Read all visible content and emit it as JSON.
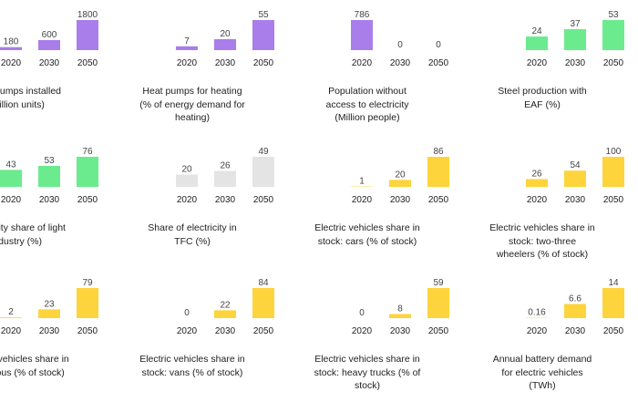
{
  "colors": {
    "purple": "#a97eea",
    "green": "#6ceb8e",
    "grey": "#e4e4e4",
    "yellow": "#fdd43b"
  },
  "chart_data": [
    {
      "type": "bar",
      "title_lines": [
        "Heat pumps installed",
        "(Million units)"
      ],
      "categories": [
        "2020",
        "2030",
        "2050"
      ],
      "values": [
        180,
        600,
        1800
      ],
      "labels": [
        "180",
        "600",
        "1800"
      ],
      "color": "purple"
    },
    {
      "type": "bar",
      "title_lines": [
        "Heat pumps for heating",
        "(% of energy demand for",
        "heating)"
      ],
      "categories": [
        "2020",
        "2030",
        "2050"
      ],
      "values": [
        7,
        20,
        55
      ],
      "labels": [
        "7",
        "20",
        "55"
      ],
      "color": "purple"
    },
    {
      "type": "bar",
      "title_lines": [
        "Population without",
        "access to electricity",
        "(Million people)"
      ],
      "categories": [
        "2020",
        "2030",
        "2050"
      ],
      "values": [
        786,
        0,
        0
      ],
      "labels": [
        "786",
        "0",
        "0"
      ],
      "color": "purple"
    },
    {
      "type": "bar",
      "title_lines": [
        "Steel production with",
        "EAF (%)"
      ],
      "categories": [
        "2020",
        "2030",
        "2050"
      ],
      "values": [
        24,
        37,
        53
      ],
      "labels": [
        "24",
        "37",
        "53"
      ],
      "color": "green"
    },
    {
      "type": "bar",
      "title_lines": [
        "Electricity share of light",
        "industry (%)"
      ],
      "categories": [
        "2020",
        "2030",
        "2050"
      ],
      "values": [
        43,
        53,
        76
      ],
      "labels": [
        "43",
        "53",
        "76"
      ],
      "color": "green"
    },
    {
      "type": "bar",
      "title_lines": [
        "Share of electricity in",
        "TFC (%)"
      ],
      "categories": [
        "2020",
        "2030",
        "2050"
      ],
      "values": [
        20,
        26,
        49
      ],
      "labels": [
        "20",
        "26",
        "49"
      ],
      "color": "grey"
    },
    {
      "type": "bar",
      "title_lines": [
        "Electric vehicles share in",
        "stock: cars (% of stock)"
      ],
      "categories": [
        "2020",
        "2030",
        "2050"
      ],
      "values": [
        1,
        20,
        86
      ],
      "labels": [
        "1",
        "20",
        "86"
      ],
      "color": "yellow"
    },
    {
      "type": "bar",
      "title_lines": [
        "Electric vehicles share in",
        "stock: two-three",
        "wheelers (% of stock)"
      ],
      "categories": [
        "2020",
        "2030",
        "2050"
      ],
      "values": [
        26,
        54,
        100
      ],
      "labels": [
        "26",
        "54",
        "100"
      ],
      "color": "yellow"
    },
    {
      "type": "bar",
      "title_lines": [
        "Electric vehicles share in",
        "stock: bus (% of stock)"
      ],
      "categories": [
        "2020",
        "2030",
        "2050"
      ],
      "values": [
        2,
        23,
        79
      ],
      "labels": [
        "2",
        "23",
        "79"
      ],
      "color": "yellow"
    },
    {
      "type": "bar",
      "title_lines": [
        "Electric vehicles share in",
        "stock: vans (% of stock)"
      ],
      "categories": [
        "2020",
        "2030",
        "2050"
      ],
      "values": [
        0,
        22,
        84
      ],
      "labels": [
        "0",
        "22",
        "84"
      ],
      "color": "yellow"
    },
    {
      "type": "bar",
      "title_lines": [
        "Electric vehicles share in",
        "stock: heavy trucks (% of",
        "stock)"
      ],
      "categories": [
        "2020",
        "2030",
        "2050"
      ],
      "values": [
        0,
        8,
        59
      ],
      "labels": [
        "0",
        "8",
        "59"
      ],
      "color": "yellow"
    },
    {
      "type": "bar",
      "title_lines": [
        "Annual battery demand",
        "for electric vehicles",
        "(TWh)"
      ],
      "categories": [
        "2020",
        "2030",
        "2050"
      ],
      "values": [
        0.16,
        6.6,
        14
      ],
      "labels": [
        "0.16",
        "6.6",
        "14"
      ],
      "color": "yellow"
    }
  ]
}
